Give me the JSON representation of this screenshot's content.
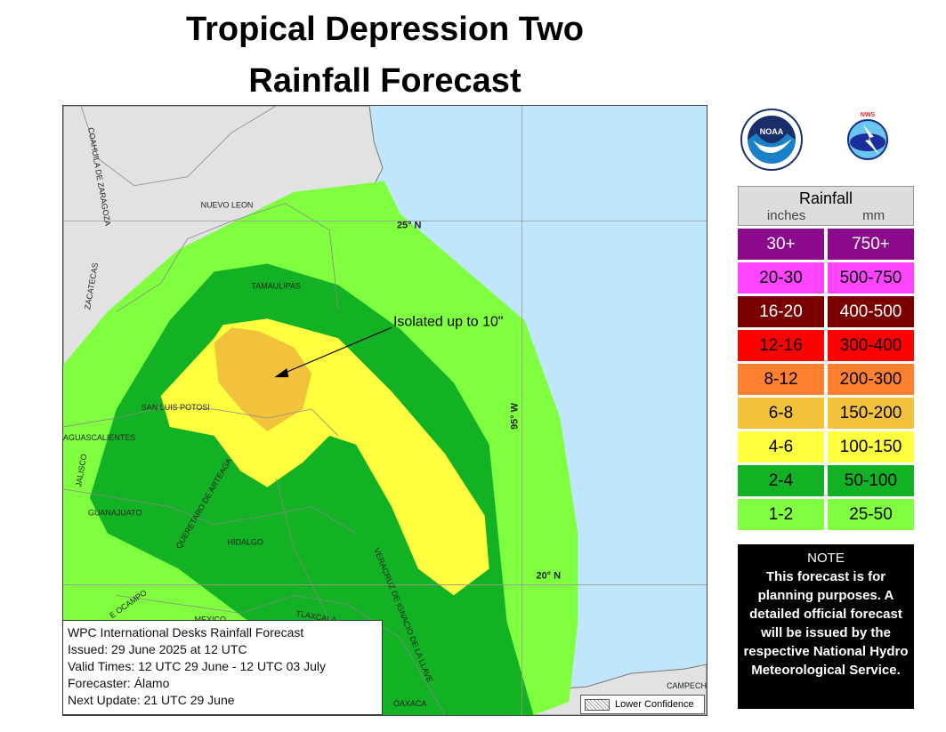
{
  "title": {
    "line1": "Tropical Depression Two",
    "line2": "Rainfall Forecast"
  },
  "map": {
    "labels": {
      "coahuila": "COAHUILA DE ZARAGOZA",
      "nuevo_leon": "NUEVO LEON",
      "zacatecas": "ZACATECAS",
      "tamaulipas": "TAMAULIPAS",
      "slp": "SAN LUIS POTOSI",
      "ags": "AGUASCALIENTES",
      "jalisco": "JALISCO",
      "guanajuato": "GUANAJUATO",
      "queretaro": "QUERETARO DE ARTEAGA",
      "hidalgo": "HIDALGO",
      "ocampo": "E OCAMPO",
      "mexico": "MEXICO",
      "tlaxcala": "TLAXCALA",
      "veracruz": "VERACRUZ DE IGNACIO DE LA LLAVE",
      "oaxaca": "OAXACA",
      "campeche": "CAMPECHE"
    },
    "gridlabels": {
      "lat25": "25° N",
      "lat20": "20° N",
      "lon95": "95° W"
    },
    "annotation": "Isolated up to 10\"",
    "colors": {
      "land": "#e2e2e2",
      "ocean": "#bfe6fa",
      "c1_2": "#80ff40",
      "c2_4": "#12b224",
      "c4_6": "#ffff40",
      "c6_8": "#f2c23c"
    }
  },
  "info": {
    "line1": "WPC International Desks Rainfall Forecast",
    "line2": "Issued: 29 June 2025 at 12 UTC",
    "line3": "Valid Times: 12 UTC 29 June - 12 UTC 03 July",
    "line4": "Forecaster: Álamo",
    "line5": "Next Update: 21 UTC 29 June"
  },
  "lower_confidence": "Lower Confidence",
  "logos": {
    "noara": "NOAA",
    "nws": "NATIONAL WEATHER SERVICE"
  },
  "legend": {
    "title": "Rainfall",
    "unit_in": "inches",
    "unit_mm": "mm",
    "rows": [
      {
        "in": "30+",
        "mm": "750+",
        "color": "#8b0a8b",
        "text": "#ffffff"
      },
      {
        "in": "20-30",
        "mm": "500-750",
        "color": "#ff44ff",
        "text": "#000000"
      },
      {
        "in": "16-20",
        "mm": "400-500",
        "color": "#7a0000",
        "text": "#ffffff"
      },
      {
        "in": "12-16",
        "mm": "300-400",
        "color": "#ff0000",
        "text": "#000000"
      },
      {
        "in": "8-12",
        "mm": "200-300",
        "color": "#ff8030",
        "text": "#000000"
      },
      {
        "in": "6-8",
        "mm": "150-200",
        "color": "#f2c23c",
        "text": "#000000"
      },
      {
        "in": "4-6",
        "mm": "100-150",
        "color": "#ffff40",
        "text": "#000000"
      },
      {
        "in": "2-4",
        "mm": "50-100",
        "color": "#12b224",
        "text": "#000000"
      },
      {
        "in": "1-2",
        "mm": "25-50",
        "color": "#80ff40",
        "text": "#000000"
      }
    ]
  },
  "note": {
    "heading": "NOTE",
    "text": "This forecast is for planning purposes. A detailed official forecast will be issued by the respective National Hydro Meteorological Service."
  }
}
